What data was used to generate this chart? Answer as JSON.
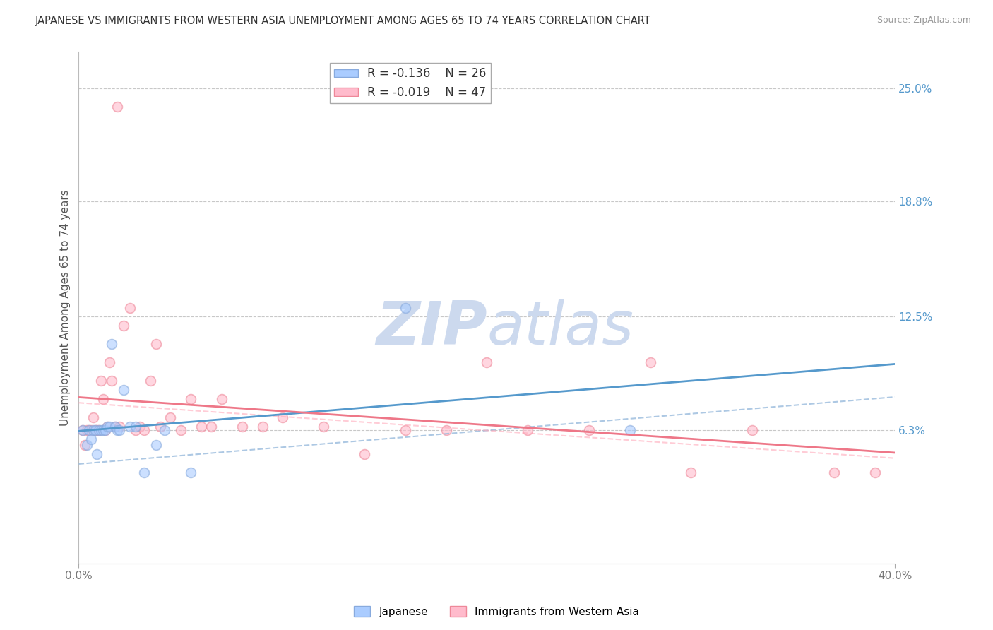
{
  "title": "JAPANESE VS IMMIGRANTS FROM WESTERN ASIA UNEMPLOYMENT AMONG AGES 65 TO 74 YEARS CORRELATION CHART",
  "source": "Source: ZipAtlas.com",
  "ylabel": "Unemployment Among Ages 65 to 74 years",
  "xmin": 0.0,
  "xmax": 0.4,
  "ymin": -0.01,
  "ymax": 0.27,
  "yticks": [
    0.063,
    0.125,
    0.188,
    0.25
  ],
  "ytick_labels": [
    "6.3%",
    "12.5%",
    "18.8%",
    "25.0%"
  ],
  "background_color": "#ffffff",
  "grid_color": "#c8c8c8",
  "watermark_zip": "ZIP",
  "watermark_atlas": "atlas",
  "watermark_color": "#ccd9ee",
  "japanese_scatter_color": "#aaccff",
  "japanese_edge_color": "#88aadd",
  "western_scatter_color": "#ffbbcc",
  "western_edge_color": "#ee8899",
  "trend_japanese_color": "#5599cc",
  "trend_western_color": "#ee7788",
  "trend_dashed_japanese_color": "#99bbdd",
  "trend_dashed_western_color": "#ffaabb",
  "legend_R_japanese": "R = -0.136",
  "legend_N_japanese": "N = 26",
  "legend_R_western": "R = -0.019",
  "legend_N_western": "N = 47",
  "japanese_x": [
    0.002,
    0.004,
    0.005,
    0.006,
    0.007,
    0.008,
    0.009,
    0.01,
    0.011,
    0.012,
    0.013,
    0.014,
    0.015,
    0.016,
    0.018,
    0.019,
    0.02,
    0.022,
    0.025,
    0.028,
    0.032,
    0.038,
    0.042,
    0.055,
    0.16,
    0.27
  ],
  "japanese_y": [
    0.063,
    0.055,
    0.063,
    0.058,
    0.063,
    0.063,
    0.05,
    0.063,
    0.063,
    0.063,
    0.063,
    0.065,
    0.065,
    0.11,
    0.065,
    0.063,
    0.063,
    0.085,
    0.065,
    0.065,
    0.04,
    0.055,
    0.063,
    0.04,
    0.13,
    0.063
  ],
  "western_asia_x": [
    0.002,
    0.003,
    0.004,
    0.005,
    0.006,
    0.007,
    0.008,
    0.009,
    0.01,
    0.011,
    0.012,
    0.013,
    0.014,
    0.015,
    0.016,
    0.018,
    0.019,
    0.02,
    0.022,
    0.025,
    0.028,
    0.03,
    0.032,
    0.035,
    0.038,
    0.04,
    0.045,
    0.05,
    0.055,
    0.06,
    0.065,
    0.07,
    0.08,
    0.09,
    0.1,
    0.12,
    0.14,
    0.16,
    0.18,
    0.2,
    0.22,
    0.25,
    0.28,
    0.3,
    0.33,
    0.37,
    0.39
  ],
  "western_asia_y": [
    0.063,
    0.055,
    0.063,
    0.063,
    0.063,
    0.07,
    0.063,
    0.063,
    0.063,
    0.09,
    0.08,
    0.063,
    0.065,
    0.1,
    0.09,
    0.065,
    0.24,
    0.065,
    0.12,
    0.13,
    0.063,
    0.065,
    0.063,
    0.09,
    0.11,
    0.065,
    0.07,
    0.063,
    0.08,
    0.065,
    0.065,
    0.08,
    0.065,
    0.065,
    0.07,
    0.065,
    0.05,
    0.063,
    0.063,
    0.1,
    0.063,
    0.063,
    0.1,
    0.04,
    0.063,
    0.04,
    0.04
  ],
  "marker_size": 100,
  "marker_alpha": 0.6
}
